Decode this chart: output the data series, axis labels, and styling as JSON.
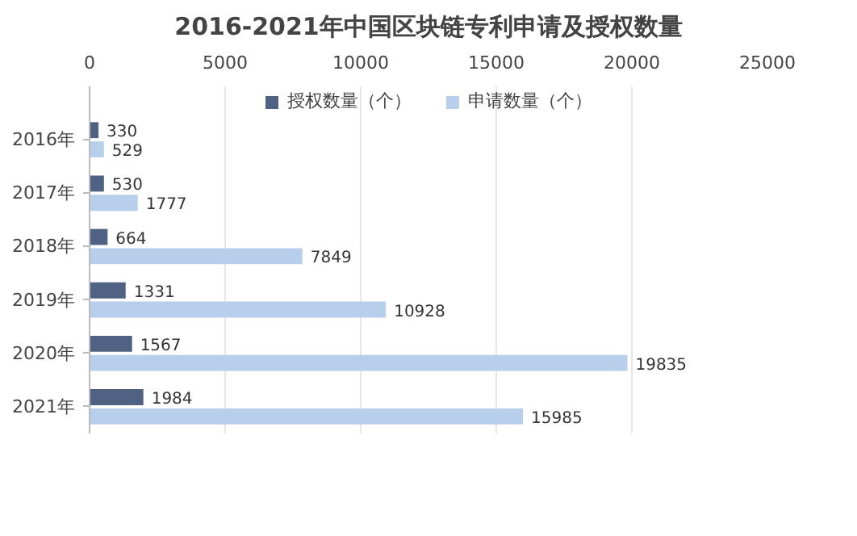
{
  "chart_data": {
    "type": "bar",
    "orientation": "horizontal",
    "title": "2016-2021年中国区块链专利申请及授权数量",
    "categories": [
      "2016年",
      "2017年",
      "2018年",
      "2019年",
      "2020年",
      "2021年"
    ],
    "series": [
      {
        "name": "授权数量（个）",
        "color": "#4f6283",
        "values": [
          330,
          530,
          664,
          1331,
          1567,
          1984
        ]
      },
      {
        "name": "申请数量（个）",
        "color": "#b7cfea",
        "values": [
          529,
          1777,
          7849,
          10928,
          19835,
          15985
        ]
      }
    ],
    "xlim": [
      0,
      25000
    ],
    "xticks": [
      0,
      5000,
      10000,
      15000,
      20000,
      25000
    ],
    "grid": "x",
    "legend": "top",
    "data_labels": true
  }
}
